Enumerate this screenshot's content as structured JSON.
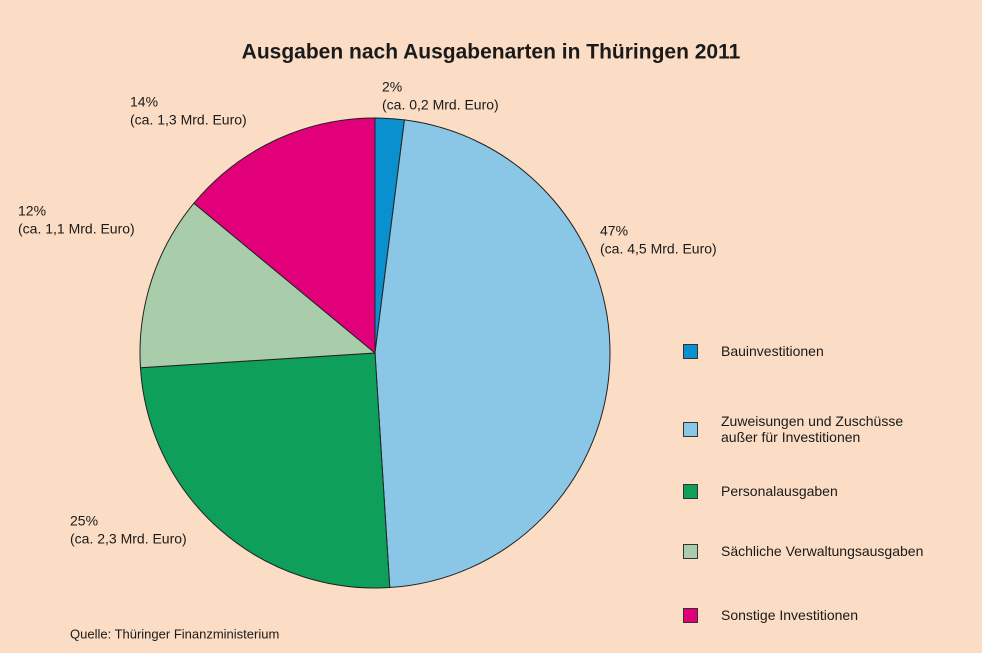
{
  "chart_data": {
    "type": "pie",
    "title": "Ausgaben nach Ausgabenarten in Thüringen 2011",
    "categories": [
      "Bauinvestitionen",
      "Zuweisungen und Zuschüsse außer für Investitionen",
      "Personalausgaben",
      "Sächliche Verwaltungsausgaben",
      "Sonstige Investitionen"
    ],
    "values": [
      2,
      47,
      25,
      12,
      14
    ],
    "value_labels": [
      "2%",
      "47%",
      "25%",
      "12%",
      "14%"
    ],
    "annotations": [
      "(ca. 0,2 Mrd. Euro)",
      "(ca. 4,5 Mrd. Euro)",
      "(ca. 2,3 Mrd. Euro)",
      "(ca. 1,1 Mrd. Euro)",
      "(ca. 1,3 Mrd. Euro)"
    ],
    "colors": [
      "#0a8fcf",
      "#8ac6e6",
      "#0ea05a",
      "#a9cdaa",
      "#e2007a"
    ],
    "source": "Quelle: Thüringer Finanzministerium"
  }
}
